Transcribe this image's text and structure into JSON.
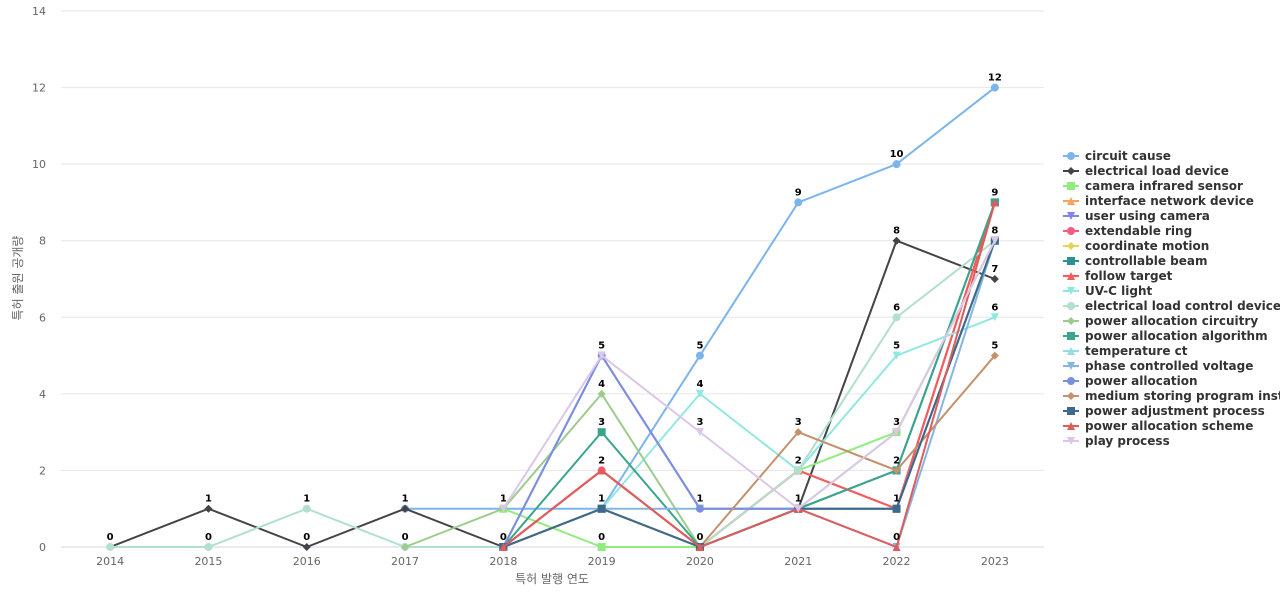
{
  "chart_data": {
    "type": "line",
    "xlabel": "특허 발행 연도",
    "ylabel": "특허 출원 공개량",
    "ylim": [
      0,
      14
    ],
    "y_ticks": [
      "0",
      "2",
      "4",
      "6",
      "8",
      "10",
      "12",
      "14"
    ],
    "categories": [
      "2014",
      "2015",
      "2016",
      "2017",
      "2018",
      "2019",
      "2020",
      "2021",
      "2022",
      "2023"
    ],
    "grid": true,
    "legend_position": "right",
    "series": [
      {
        "name": "circuit cause",
        "color": "#7cb5ec",
        "marker": "circle",
        "values": [
          null,
          null,
          null,
          1,
          1,
          1,
          5,
          9,
          10,
          12
        ]
      },
      {
        "name": "electrical load device",
        "color": "#434348",
        "marker": "diamond",
        "values": [
          0,
          1,
          0,
          1,
          0,
          1,
          0,
          1,
          8,
          7
        ]
      },
      {
        "name": "camera infrared sensor",
        "color": "#90ed7d",
        "marker": "square",
        "values": [
          null,
          null,
          null,
          null,
          1,
          0,
          0,
          2,
          3,
          8
        ]
      },
      {
        "name": "interface network device",
        "color": "#f7a35c",
        "marker": "triangle",
        "values": [
          null,
          null,
          null,
          null,
          0,
          1,
          0,
          1,
          1,
          9
        ]
      },
      {
        "name": "user using camera",
        "color": "#8085e9",
        "marker": "triangle-down",
        "values": [
          null,
          null,
          null,
          null,
          0,
          5,
          1,
          1,
          1,
          8
        ]
      },
      {
        "name": "extendable ring",
        "color": "#f15c80",
        "marker": "circle",
        "values": [
          null,
          null,
          null,
          null,
          0,
          2,
          0,
          2,
          1,
          9
        ]
      },
      {
        "name": "coordinate motion",
        "color": "#e4d354",
        "marker": "diamond",
        "values": [
          null,
          null,
          null,
          null,
          0,
          1,
          0,
          1,
          1,
          8
        ]
      },
      {
        "name": "controllable beam",
        "color": "#2b908f",
        "marker": "square",
        "values": [
          null,
          null,
          null,
          null,
          0,
          1,
          0,
          1,
          2,
          9
        ]
      },
      {
        "name": "follow target",
        "color": "#f45b5b",
        "marker": "triangle",
        "values": [
          null,
          null,
          null,
          null,
          0,
          2,
          0,
          2,
          1,
          9
        ]
      },
      {
        "name": "UV-C light",
        "color": "#91e8e1",
        "marker": "triangle-down",
        "values": [
          null,
          null,
          null,
          null,
          0,
          1,
          4,
          2,
          5,
          6
        ]
      },
      {
        "name": "electrical load control device",
        "color": "#b3dfce",
        "marker": "circle",
        "values": [
          0,
          0,
          1,
          0,
          0,
          1,
          0,
          2,
          6,
          8
        ]
      },
      {
        "name": "power allocation circuitry",
        "color": "#9ccc8c",
        "marker": "diamond",
        "values": [
          null,
          null,
          null,
          0,
          1,
          4,
          0,
          1,
          3,
          8
        ]
      },
      {
        "name": "power allocation algorithm",
        "color": "#3aa58c",
        "marker": "square",
        "values": [
          null,
          null,
          null,
          null,
          0,
          3,
          0,
          1,
          2,
          9
        ]
      },
      {
        "name": "temperature ct",
        "color": "#94dde6",
        "marker": "triangle",
        "values": [
          null,
          null,
          null,
          null,
          0,
          1,
          0,
          1,
          1,
          8
        ]
      },
      {
        "name": "phase controlled voltage",
        "color": "#85b6e0",
        "marker": "triangle-down",
        "values": [
          null,
          null,
          null,
          null,
          0,
          1,
          1,
          1,
          0,
          8
        ]
      },
      {
        "name": "power allocation",
        "color": "#7b8ee0",
        "marker": "circle",
        "values": [
          null,
          null,
          null,
          null,
          0,
          5,
          1,
          1,
          1,
          8
        ]
      },
      {
        "name": "medium storing program inst...",
        "color": "#c4916c",
        "marker": "diamond",
        "values": [
          null,
          null,
          null,
          null,
          0,
          1,
          0,
          3,
          2,
          5
        ]
      },
      {
        "name": "power adjustment process",
        "color": "#3d6a8c",
        "marker": "square",
        "values": [
          null,
          null,
          null,
          null,
          0,
          1,
          0,
          1,
          1,
          8
        ]
      },
      {
        "name": "power allocation scheme",
        "color": "#de5c5c",
        "marker": "triangle",
        "values": [
          null,
          null,
          null,
          null,
          0,
          2,
          0,
          1,
          0,
          9
        ]
      },
      {
        "name": "play process",
        "color": "#dcc7e8",
        "marker": "triangle-down",
        "values": [
          null,
          null,
          null,
          null,
          1,
          5,
          3,
          1,
          3,
          8
        ]
      }
    ],
    "data_labels": [
      {
        "x": "2014",
        "y": 0,
        "text": "0"
      },
      {
        "x": "2015",
        "y": 1,
        "text": "1"
      },
      {
        "x": "2015",
        "y": 0,
        "text": "0"
      },
      {
        "x": "2016",
        "y": 1,
        "text": "1"
      },
      {
        "x": "2016",
        "y": 0,
        "text": "0"
      },
      {
        "x": "2017",
        "y": 1,
        "text": "1"
      },
      {
        "x": "2017",
        "y": 0,
        "text": "0"
      },
      {
        "x": "2018",
        "y": 1,
        "text": "1"
      },
      {
        "x": "2018",
        "y": 0,
        "text": "0"
      },
      {
        "x": "2019",
        "y": 5,
        "text": "5"
      },
      {
        "x": "2019",
        "y": 4,
        "text": "4"
      },
      {
        "x": "2019",
        "y": 3,
        "text": "3"
      },
      {
        "x": "2019",
        "y": 2,
        "text": "2"
      },
      {
        "x": "2019",
        "y": 1,
        "text": "1"
      },
      {
        "x": "2019",
        "y": 0,
        "text": "0"
      },
      {
        "x": "2020",
        "y": 5,
        "text": "5"
      },
      {
        "x": "2020",
        "y": 4,
        "text": "4"
      },
      {
        "x": "2020",
        "y": 3,
        "text": "3"
      },
      {
        "x": "2020",
        "y": 1,
        "text": "1"
      },
      {
        "x": "2020",
        "y": 0,
        "text": "0"
      },
      {
        "x": "2021",
        "y": 9,
        "text": "9"
      },
      {
        "x": "2021",
        "y": 3,
        "text": "3"
      },
      {
        "x": "2021",
        "y": 2,
        "text": "2"
      },
      {
        "x": "2021",
        "y": 1,
        "text": "1"
      },
      {
        "x": "2022",
        "y": 10,
        "text": "10"
      },
      {
        "x": "2022",
        "y": 8,
        "text": "8"
      },
      {
        "x": "2022",
        "y": 6,
        "text": "6"
      },
      {
        "x": "2022",
        "y": 5,
        "text": "5"
      },
      {
        "x": "2022",
        "y": 3,
        "text": "3"
      },
      {
        "x": "2022",
        "y": 2,
        "text": "2"
      },
      {
        "x": "2022",
        "y": 1,
        "text": "1"
      },
      {
        "x": "2022",
        "y": 0,
        "text": "0"
      },
      {
        "x": "2023",
        "y": 12,
        "text": "12"
      },
      {
        "x": "2023",
        "y": 9,
        "text": "9"
      },
      {
        "x": "2023",
        "y": 8,
        "text": "8"
      },
      {
        "x": "2023",
        "y": 7,
        "text": "7"
      },
      {
        "x": "2023",
        "y": 6,
        "text": "6"
      },
      {
        "x": "2023",
        "y": 5,
        "text": "5"
      }
    ]
  }
}
